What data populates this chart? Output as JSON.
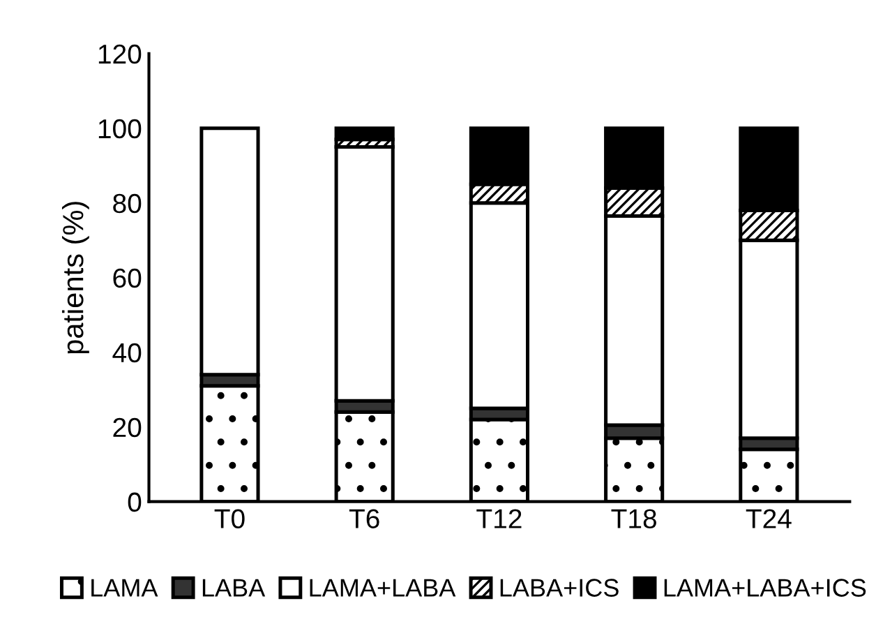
{
  "chart_data": {
    "type": "bar",
    "stacked": true,
    "ylabel": "patients (%)",
    "categories": [
      "T0",
      "T6",
      "T12",
      "T18",
      "T24"
    ],
    "series": [
      {
        "name": "LAMA",
        "color": "#ffffff",
        "values": [
          31,
          24,
          22,
          17,
          14
        ]
      },
      {
        "name": "LABA",
        "color": "#333333",
        "values": [
          3,
          3,
          3,
          3.5,
          3
        ]
      },
      {
        "name": "LAMA+LABA",
        "color": "#ffffff",
        "values": [
          66,
          68,
          55,
          56,
          53
        ]
      },
      {
        "name": "LABA+ICS",
        "color": "#ffffff",
        "values": [
          0,
          2,
          5,
          7.5,
          8
        ]
      },
      {
        "name": "LAMA+LABA+ICS",
        "color": "#000000",
        "values": [
          0,
          3,
          15,
          16,
          22
        ]
      }
    ],
    "ylim": [
      0,
      120
    ],
    "yticks": [
      0,
      20,
      40,
      60,
      80,
      100,
      120
    ],
    "grid": false,
    "legend": "bottom"
  }
}
